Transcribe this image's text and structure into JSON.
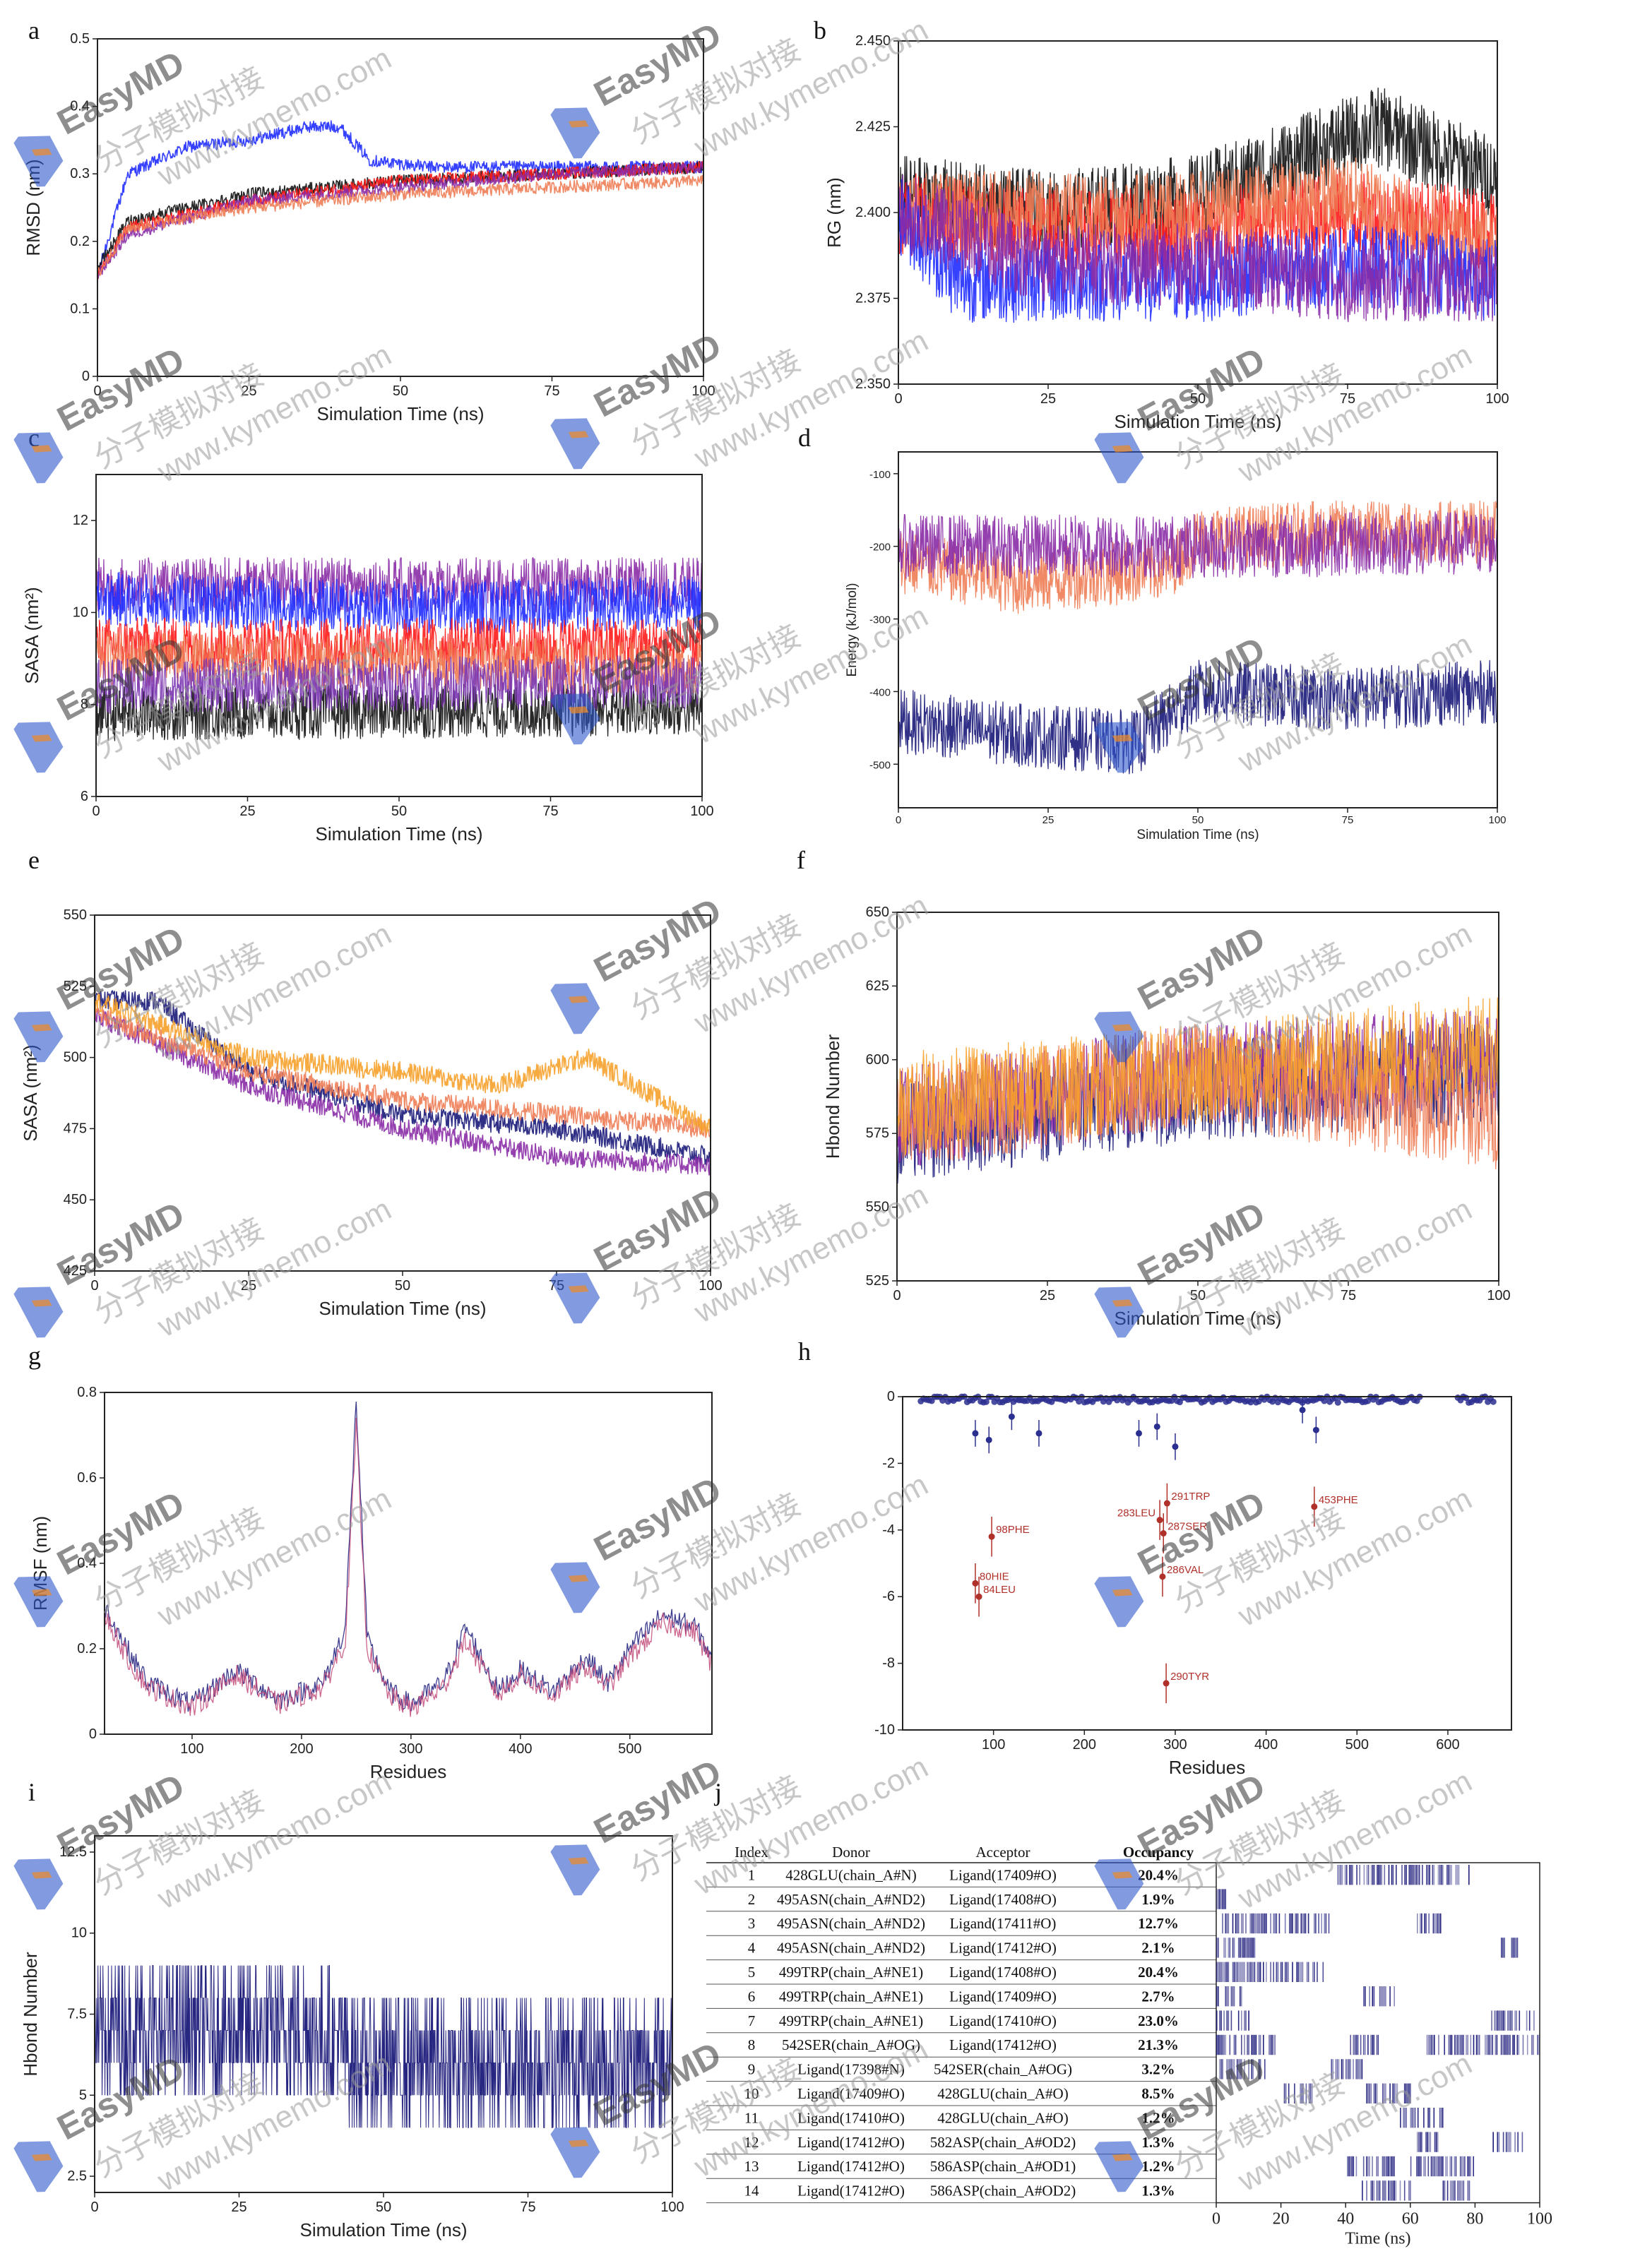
{
  "watermark": {
    "brand": "EasyMD",
    "chinese": "分子模拟对接",
    "url": "www.kymemo.com"
  },
  "colors": {
    "black": "#111111",
    "blue": "#1f2cff",
    "red": "#ff1a1a",
    "purple": "#8a2ba6",
    "navy": "#1b1a7a",
    "salmon": "#ee7d55",
    "orange": "#f6a12a",
    "violet": "#7a34b0"
  },
  "chart_data": [
    {
      "panel": "a",
      "type": "line",
      "xlabel": "Simulation Time (ns)",
      "ylabel": "RMSD (nm)",
      "xlim": [
        0,
        100
      ],
      "ylim": [
        0,
        0.5
      ],
      "xticks": [
        "0",
        "25",
        "50",
        "75",
        "100"
      ],
      "yticks": [
        "0",
        "0.1",
        "0.2",
        "0.3",
        "0.4",
        "0.5"
      ],
      "series": [
        {
          "color": "#1f2cff",
          "x": [
            0,
            5,
            15,
            25,
            35,
            40,
            45,
            55,
            75,
            100
          ],
          "y": [
            0.15,
            0.3,
            0.34,
            0.35,
            0.37,
            0.37,
            0.32,
            0.31,
            0.31,
            0.31
          ]
        },
        {
          "color": "#111111",
          "x": [
            0,
            5,
            25,
            50,
            75,
            100
          ],
          "y": [
            0.16,
            0.23,
            0.27,
            0.29,
            0.3,
            0.31
          ]
        },
        {
          "color": "#ff1a1a",
          "x": [
            0,
            5,
            25,
            50,
            75,
            100
          ],
          "y": [
            0.15,
            0.22,
            0.26,
            0.29,
            0.3,
            0.31
          ]
        },
        {
          "color": "#8a2ba6",
          "x": [
            0,
            5,
            25,
            50,
            75,
            100
          ],
          "y": [
            0.15,
            0.21,
            0.26,
            0.28,
            0.3,
            0.31
          ]
        },
        {
          "color": "#ee7d55",
          "x": [
            0,
            5,
            25,
            50,
            75,
            100
          ],
          "y": [
            0.15,
            0.22,
            0.25,
            0.27,
            0.28,
            0.29
          ]
        }
      ]
    },
    {
      "panel": "b",
      "type": "line",
      "xlabel": "Simulation Time (ns)",
      "ylabel": "RG (nm)",
      "xlim": [
        0,
        100
      ],
      "ylim": [
        2.35,
        2.45
      ],
      "xticks": [
        "0",
        "25",
        "50",
        "75",
        "100"
      ],
      "yticks": [
        "2.350",
        "2.375",
        "2.400",
        "2.425",
        "2.450"
      ],
      "series": [
        {
          "color": "#111111",
          "x": [
            0,
            25,
            50,
            65,
            80,
            100
          ],
          "y": [
            2.405,
            2.4,
            2.405,
            2.415,
            2.425,
            2.41
          ]
        },
        {
          "color": "#ff1a1a",
          "x": [
            0,
            25,
            50,
            75,
            100
          ],
          "y": [
            2.4,
            2.395,
            2.395,
            2.4,
            2.395
          ]
        },
        {
          "color": "#ee7d55",
          "x": [
            0,
            25,
            50,
            75,
            100
          ],
          "y": [
            2.4,
            2.4,
            2.4,
            2.405,
            2.39
          ]
        },
        {
          "color": "#1f2cff",
          "x": [
            0,
            10,
            25,
            50,
            75,
            100
          ],
          "y": [
            2.4,
            2.38,
            2.38,
            2.38,
            2.385,
            2.38
          ]
        },
        {
          "color": "#8a2ba6",
          "x": [
            0,
            25,
            50,
            75,
            100
          ],
          "y": [
            2.4,
            2.385,
            2.385,
            2.38,
            2.38
          ]
        }
      ]
    },
    {
      "panel": "c",
      "type": "line",
      "xlabel": "Simulation Time (ns)",
      "ylabel": "SASA (nm²)",
      "xlim": [
        0,
        100
      ],
      "ylim": [
        6,
        13
      ],
      "xticks": [
        "0",
        "25",
        "50",
        "75",
        "100"
      ],
      "yticks": [
        "6",
        "8",
        "10",
        "12"
      ],
      "series": [
        {
          "color": "#111111",
          "x": [
            0,
            100
          ],
          "y": [
            7.8,
            7.9
          ]
        },
        {
          "color": "#8a2ba6",
          "x": [
            0,
            100
          ],
          "y": [
            10.6,
            10.6
          ]
        },
        {
          "color": "#1f2cff",
          "x": [
            0,
            50,
            100
          ],
          "y": [
            10.3,
            10.1,
            10.2
          ]
        },
        {
          "color": "#ff1a1a",
          "x": [
            0,
            100
          ],
          "y": [
            9.3,
            9.3
          ]
        },
        {
          "color": "#ee7d55",
          "x": [
            0,
            100
          ],
          "y": [
            9.0,
            8.8
          ]
        },
        {
          "color": "#7a34b0",
          "x": [
            0,
            100
          ],
          "y": [
            8.4,
            8.5
          ]
        }
      ]
    },
    {
      "panel": "d",
      "type": "line",
      "xlabel": "Simulation Time (ns)",
      "ylabel": "Energy (kJ/mol)",
      "xlim": [
        0,
        100
      ],
      "ylim": [
        -560,
        -70
      ],
      "xticks": [
        "0",
        "25",
        "50",
        "75",
        "100"
      ],
      "yticks": [
        "-100",
        "-200",
        "-300",
        "-400",
        "-500"
      ],
      "series": [
        {
          "color": "#ee7d55",
          "x": [
            0,
            20,
            45,
            50,
            75,
            100
          ],
          "y": [
            -220,
            -250,
            -230,
            -190,
            -180,
            -180
          ]
        },
        {
          "color": "#8a2ba6",
          "x": [
            0,
            50,
            100
          ],
          "y": [
            -200,
            -200,
            -195
          ]
        },
        {
          "color": "#1b1a7a",
          "x": [
            0,
            20,
            40,
            50,
            75,
            100
          ],
          "y": [
            -440,
            -460,
            -470,
            -400,
            -410,
            -400
          ]
        }
      ]
    },
    {
      "panel": "e",
      "type": "line",
      "xlabel": "Simulation Time (ns)",
      "ylabel": "SASA (nm²)",
      "xlim": [
        0,
        100
      ],
      "ylim": [
        425,
        550
      ],
      "xticks": [
        "0",
        "25",
        "50",
        "75",
        "100"
      ],
      "yticks": [
        "425",
        "450",
        "475",
        "500",
        "525",
        "550"
      ],
      "series": [
        {
          "color": "#1b1a7a",
          "x": [
            0,
            10,
            25,
            50,
            75,
            100
          ],
          "y": [
            520,
            520,
            495,
            480,
            475,
            465
          ]
        },
        {
          "color": "#8a2ba6",
          "x": [
            0,
            25,
            50,
            75,
            100
          ],
          "y": [
            515,
            490,
            475,
            465,
            462
          ]
        },
        {
          "color": "#ee7d55",
          "x": [
            0,
            25,
            50,
            75,
            100
          ],
          "y": [
            515,
            495,
            485,
            480,
            475
          ]
        },
        {
          "color": "#f6a12a",
          "x": [
            0,
            25,
            50,
            65,
            80,
            100
          ],
          "y": [
            520,
            500,
            495,
            490,
            500,
            475
          ]
        }
      ]
    },
    {
      "panel": "f",
      "type": "line",
      "xlabel": "Simulation Time (ns)",
      "ylabel": "Hbond Number",
      "xlim": [
        0,
        100
      ],
      "ylim": [
        525,
        650
      ],
      "xticks": [
        "0",
        "25",
        "50",
        "75",
        "100"
      ],
      "yticks": [
        "525",
        "550",
        "575",
        "600",
        "625",
        "650"
      ],
      "series": [
        {
          "color": "#1b1a7a",
          "x": [
            0,
            50,
            100
          ],
          "y": [
            575,
            590,
            595
          ]
        },
        {
          "color": "#8a2ba6",
          "x": [
            0,
            50,
            100
          ],
          "y": [
            580,
            595,
            600
          ]
        },
        {
          "color": "#ee7d55",
          "x": [
            0,
            50,
            100
          ],
          "y": [
            580,
            595,
            580
          ]
        },
        {
          "color": "#f6a12a",
          "x": [
            0,
            50,
            100
          ],
          "y": [
            585,
            595,
            605
          ]
        }
      ]
    },
    {
      "panel": "g",
      "type": "line",
      "xlabel": "Residues",
      "ylabel": "RMSF (nm)",
      "xlim": [
        20,
        575
      ],
      "ylim": [
        0,
        0.8
      ],
      "xticks": [
        "100",
        "200",
        "300",
        "400",
        "500"
      ],
      "yticks": [
        "0",
        "0.2",
        "0.4",
        "0.6",
        "0.8"
      ],
      "series": [
        {
          "color": "#1b1a7a",
          "x": [
            20,
            45,
            60,
            100,
            140,
            180,
            220,
            240,
            250,
            260,
            280,
            300,
            330,
            350,
            380,
            400,
            430,
            460,
            480,
            500,
            530,
            560,
            575
          ],
          "y": [
            0.3,
            0.18,
            0.12,
            0.07,
            0.15,
            0.08,
            0.12,
            0.25,
            0.78,
            0.22,
            0.1,
            0.07,
            0.12,
            0.25,
            0.1,
            0.15,
            0.1,
            0.18,
            0.12,
            0.2,
            0.28,
            0.25,
            0.18
          ]
        },
        {
          "color": "#c24a7a",
          "x": [
            20,
            45,
            60,
            100,
            140,
            180,
            220,
            240,
            250,
            260,
            280,
            300,
            330,
            350,
            380,
            400,
            430,
            460,
            480,
            500,
            530,
            560,
            575
          ],
          "y": [
            0.28,
            0.16,
            0.11,
            0.06,
            0.14,
            0.07,
            0.11,
            0.22,
            0.72,
            0.2,
            0.09,
            0.06,
            0.11,
            0.22,
            0.09,
            0.14,
            0.09,
            0.16,
            0.11,
            0.18,
            0.26,
            0.24,
            0.16
          ]
        }
      ]
    },
    {
      "panel": "h",
      "type": "scatter",
      "xlabel": "Residues",
      "ylabel": "",
      "xlim": [
        0,
        670
      ],
      "ylim": [
        -10,
        0
      ],
      "xticks": [
        "100",
        "200",
        "300",
        "400",
        "500",
        "600"
      ],
      "yticks": [
        "0",
        "-2",
        "-4",
        "-6",
        "-8",
        "-10"
      ],
      "annotations": [
        {
          "label": "98PHE",
          "x": 98,
          "y": -4.2
        },
        {
          "label": "80HIE",
          "x": 80,
          "y": -5.6
        },
        {
          "label": "84LEU",
          "x": 84,
          "y": -6.0
        },
        {
          "label": "291TRP",
          "x": 291,
          "y": -3.2
        },
        {
          "label": "283LEU",
          "x": 283,
          "y": -3.7
        },
        {
          "label": "287SER",
          "x": 287,
          "y": -4.1
        },
        {
          "label": "286VAL",
          "x": 286,
          "y": -5.4
        },
        {
          "label": "290TYR",
          "x": 290,
          "y": -8.6
        },
        {
          "label": "453PHE",
          "x": 453,
          "y": -3.3
        }
      ]
    },
    {
      "panel": "i",
      "type": "line",
      "xlabel": "Simulation Time (ns)",
      "ylabel": "Hbond Number",
      "xlim": [
        0,
        100
      ],
      "ylim": [
        2,
        13
      ],
      "xticks": [
        "0",
        "25",
        "50",
        "75",
        "100"
      ],
      "yticks": [
        "2.5",
        "5",
        "7.5",
        "10",
        "12.5"
      ],
      "series": [
        {
          "color": "#1b1a7a",
          "x": [
            0,
            40,
            45,
            100
          ],
          "y": [
            7,
            7,
            6,
            6
          ]
        }
      ]
    },
    {
      "panel": "j",
      "type": "table",
      "columns": [
        "Index",
        "Donor",
        "Acceptor",
        "Occupancy"
      ],
      "rows": [
        [
          "1",
          "428GLU(chain_A#N)",
          "Ligand(17409#O)",
          "20.4%"
        ],
        [
          "2",
          "495ASN(chain_A#ND2)",
          "Ligand(17408#O)",
          "1.9%"
        ],
        [
          "3",
          "495ASN(chain_A#ND2)",
          "Ligand(17411#O)",
          "12.7%"
        ],
        [
          "4",
          "495ASN(chain_A#ND2)",
          "Ligand(17412#O)",
          "2.1%"
        ],
        [
          "5",
          "499TRP(chain_A#NE1)",
          "Ligand(17408#O)",
          "20.4%"
        ],
        [
          "6",
          "499TRP(chain_A#NE1)",
          "Ligand(17409#O)",
          "2.7%"
        ],
        [
          "7",
          "499TRP(chain_A#NE1)",
          "Ligand(17410#O)",
          "23.0%"
        ],
        [
          "8",
          "542SER(chain_A#OG)",
          "Ligand(17412#O)",
          "21.3%"
        ],
        [
          "9",
          "Ligand(17398#N)",
          "542SER(chain_A#OG)",
          "3.2%"
        ],
        [
          "10",
          "Ligand(17409#O)",
          "428GLU(chain_A#O)",
          "8.5%"
        ],
        [
          "11",
          "Ligand(17410#O)",
          "428GLU(chain_A#O)",
          "1.2%"
        ],
        [
          "12",
          "Ligand(17412#O)",
          "582ASP(chain_A#OD2)",
          "1.3%"
        ],
        [
          "13",
          "Ligand(17412#O)",
          "586ASP(chain_A#OD1)",
          "1.2%"
        ],
        [
          "14",
          "Ligand(17412#O)",
          "586ASP(chain_A#OD2)",
          "1.3%"
        ]
      ],
      "heatmap": {
        "xlabel": "Time (ns)",
        "xticks": [
          "0",
          "20",
          "40",
          "60",
          "80",
          "100"
        ],
        "occupancy_bands": [
          [
            [
              37,
              78
            ]
          ],
          [
            [
              0,
              4
            ]
          ],
          [
            [
              0,
              35
            ],
            [
              62,
              70
            ]
          ],
          [
            [
              0,
              12
            ],
            [
              88,
              95
            ]
          ],
          [
            [
              0,
              33
            ]
          ],
          [
            [
              0,
              8
            ],
            [
              45,
              55
            ]
          ],
          [
            [
              0,
              10
            ],
            [
              85,
              100
            ]
          ],
          [
            [
              0,
              18
            ],
            [
              40,
              50
            ],
            [
              65,
              100
            ]
          ],
          [
            [
              0,
              15
            ],
            [
              35,
              45
            ]
          ],
          [
            [
              20,
              30
            ],
            [
              45,
              60
            ]
          ],
          [
            [
              55,
              70
            ]
          ],
          [
            [
              62,
              70
            ],
            [
              85,
              95
            ]
          ],
          [
            [
              40,
              55
            ],
            [
              60,
              80
            ]
          ],
          [
            [
              45,
              60
            ],
            [
              70,
              80
            ]
          ]
        ]
      }
    }
  ]
}
